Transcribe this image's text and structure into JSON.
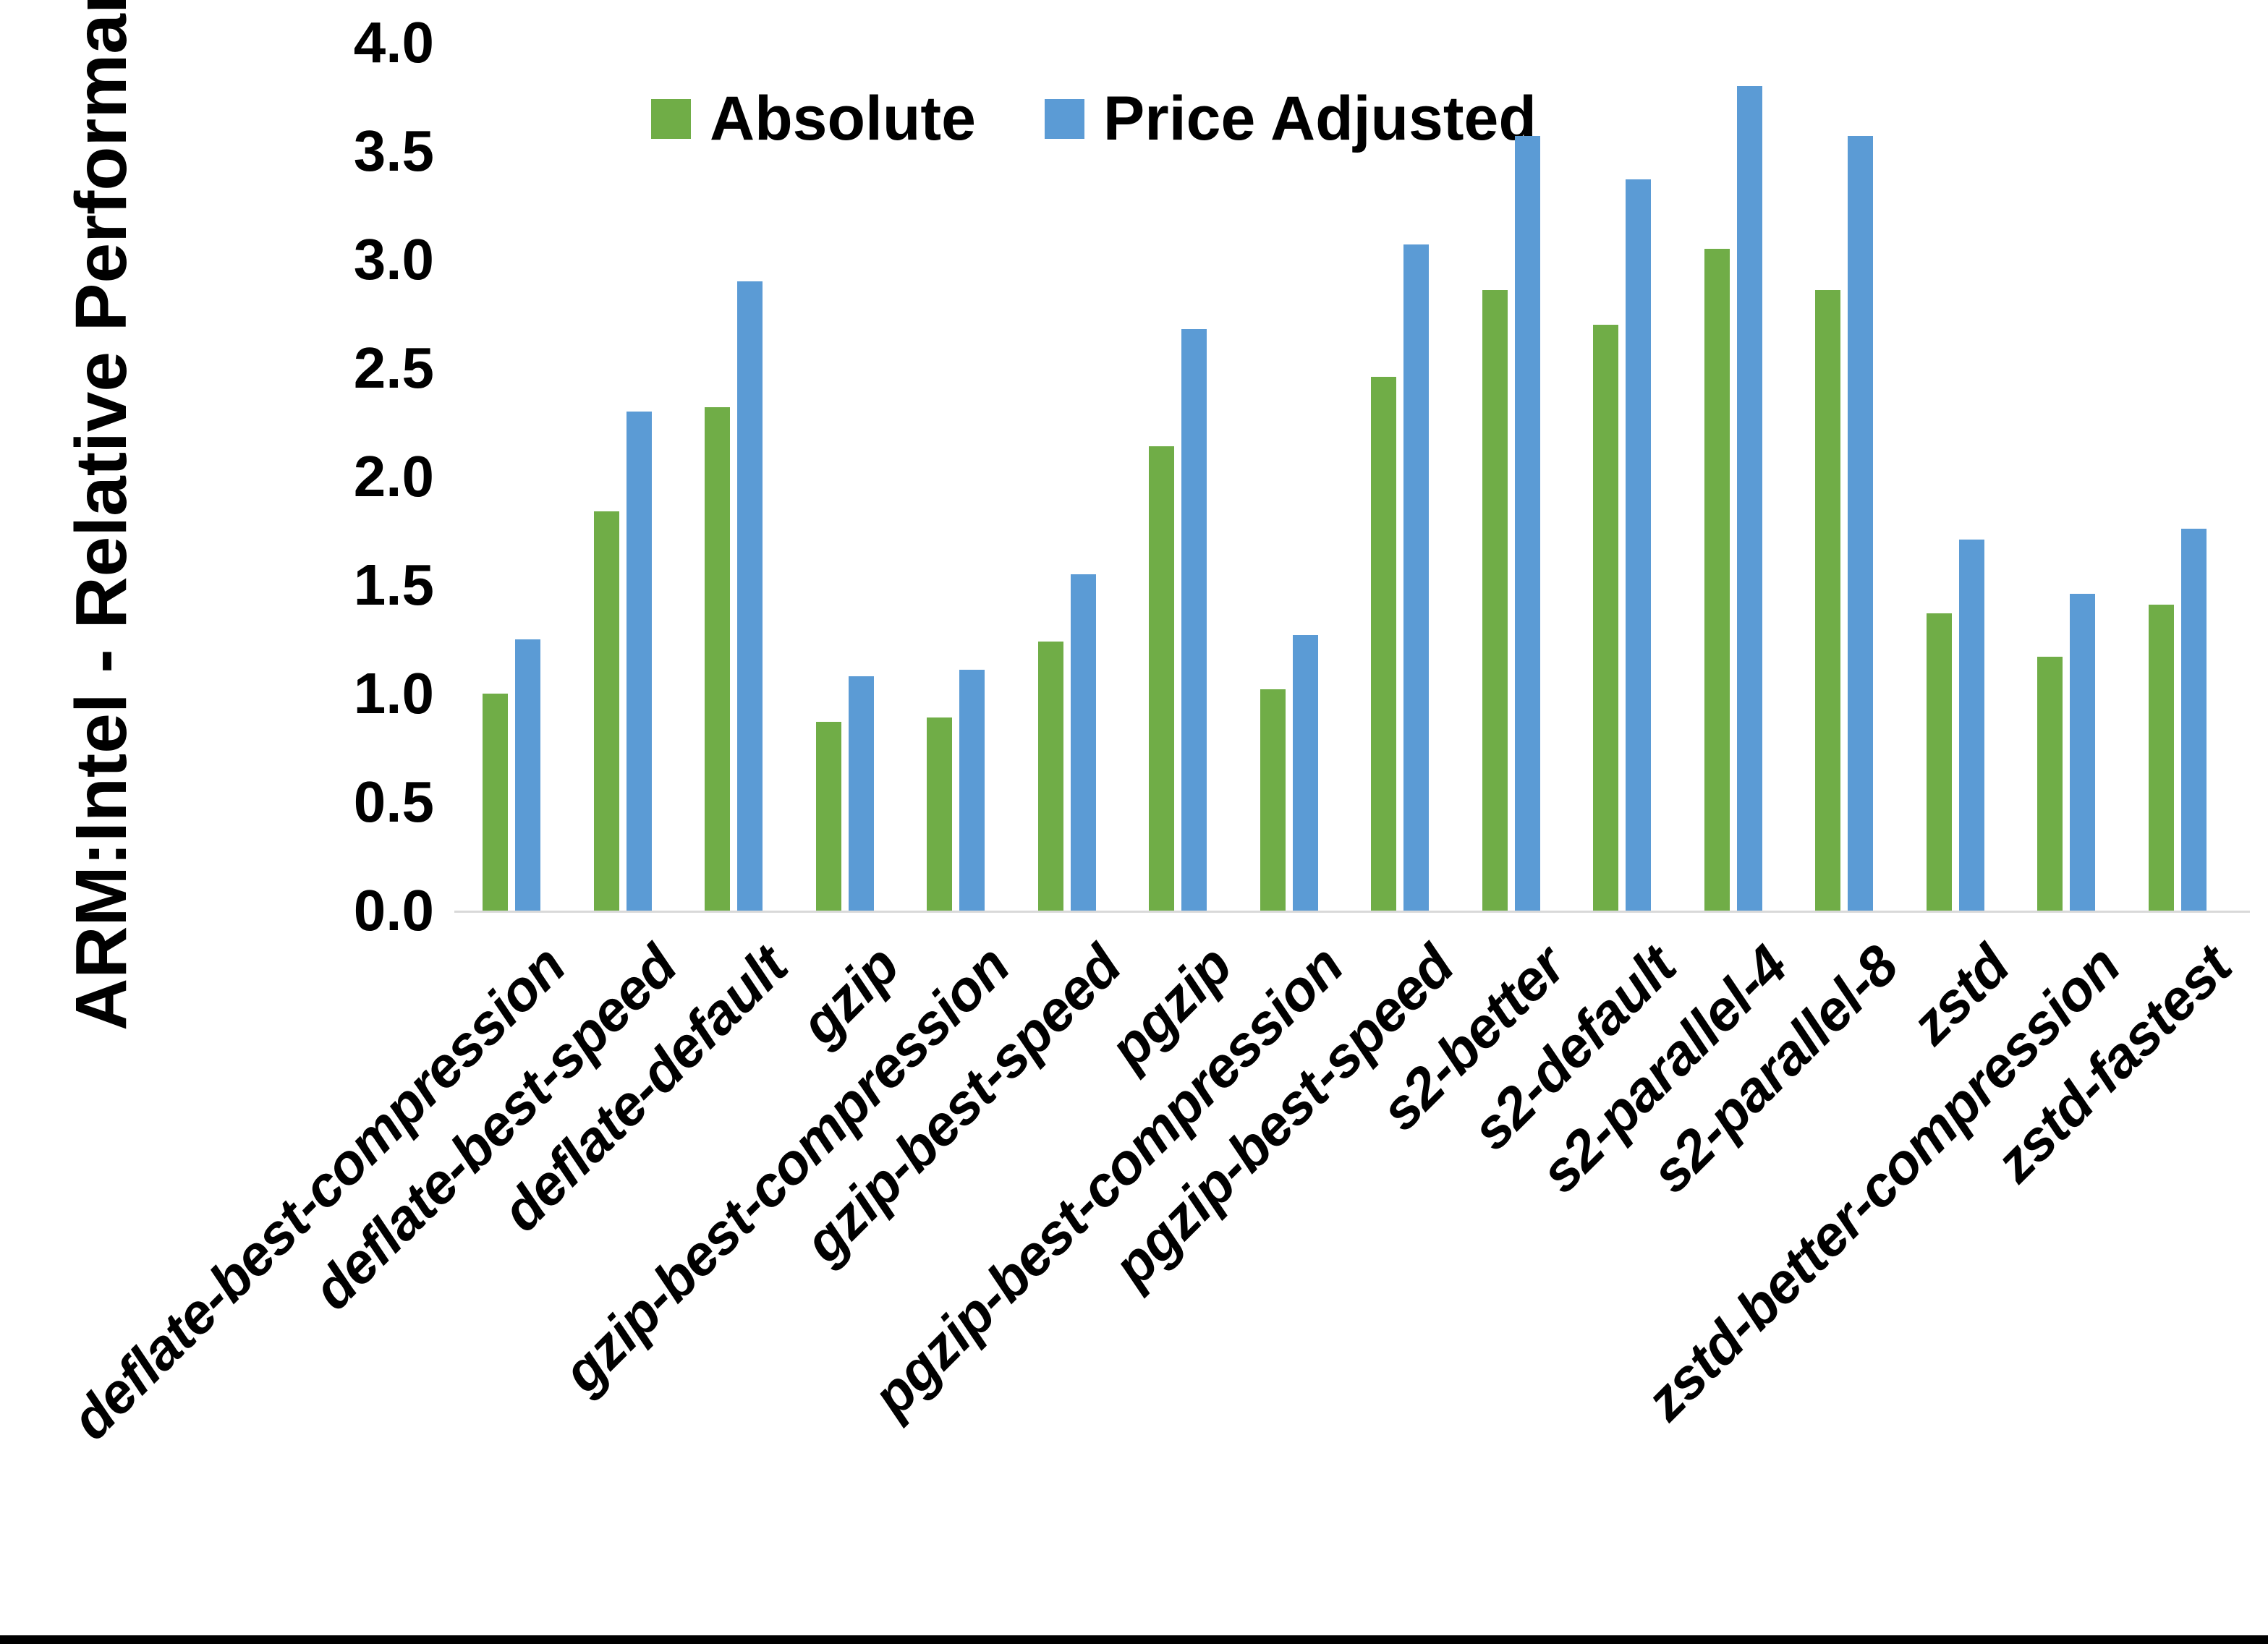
{
  "figure": {
    "background_color": "#FFFFFF",
    "bottom_border_color": "#000000",
    "axis_line_color": "#D9D9D9",
    "text_color": "#000000"
  },
  "chart_data": {
    "type": "bar",
    "title": "",
    "xlabel": "",
    "ylabel": "ARM:Intel - Relative Performance",
    "ylim": [
      0.0,
      4.0
    ],
    "ytick_step": 0.5,
    "ytick_labels": [
      "0.0",
      "0.5",
      "1.0",
      "1.5",
      "2.0",
      "2.5",
      "3.0",
      "3.5",
      "4.0"
    ],
    "grid": false,
    "legend_position": "top-center",
    "categories": [
      "deflate-best-compression",
      "deflate-best-speed",
      "deflate-default",
      "gzip",
      "gzip-best-compression",
      "gzip-best-speed",
      "pgzip",
      "pgzip-best-compression",
      "pgzip-best-speed",
      "s2-better",
      "s2-default",
      "s2-parallel-4",
      "s2-parallel-8",
      "zstd",
      "zstd-better-compression",
      "zstd-fastest"
    ],
    "series": [
      {
        "name": "Absolute",
        "color": "#70AD47",
        "values": [
          1.0,
          1.84,
          2.32,
          0.87,
          0.89,
          1.24,
          2.14,
          1.02,
          2.46,
          2.86,
          2.7,
          3.05,
          2.86,
          1.37,
          1.17,
          1.41
        ]
      },
      {
        "name": "Price Adjusted",
        "color": "#5B9BD5",
        "values": [
          1.25,
          2.3,
          2.9,
          1.08,
          1.11,
          1.55,
          2.68,
          1.27,
          3.07,
          3.57,
          3.37,
          3.8,
          3.57,
          1.71,
          1.46,
          1.76
        ]
      }
    ]
  }
}
